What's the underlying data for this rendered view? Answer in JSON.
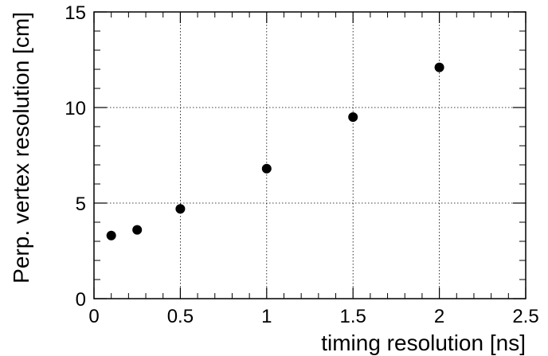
{
  "chart_data": {
    "type": "scatter",
    "title": "",
    "xlabel": "timing resolution [ns]",
    "ylabel": "Perp. vertex resolution [cm]",
    "xlim": [
      0,
      2.5
    ],
    "ylim": [
      0,
      15
    ],
    "x_ticks": [
      "0",
      "0.5",
      "1",
      "1.5",
      "2",
      "2.5"
    ],
    "y_ticks": [
      "0",
      "5",
      "10",
      "15"
    ],
    "grid": true,
    "legend": "none",
    "series": [
      {
        "x": [
          0.1,
          0.25,
          0.5,
          1.0,
          1.5,
          2.0
        ],
        "y": [
          3.3,
          3.6,
          4.7,
          6.8,
          9.5,
          12.1
        ],
        "color": "#000000"
      }
    ]
  }
}
